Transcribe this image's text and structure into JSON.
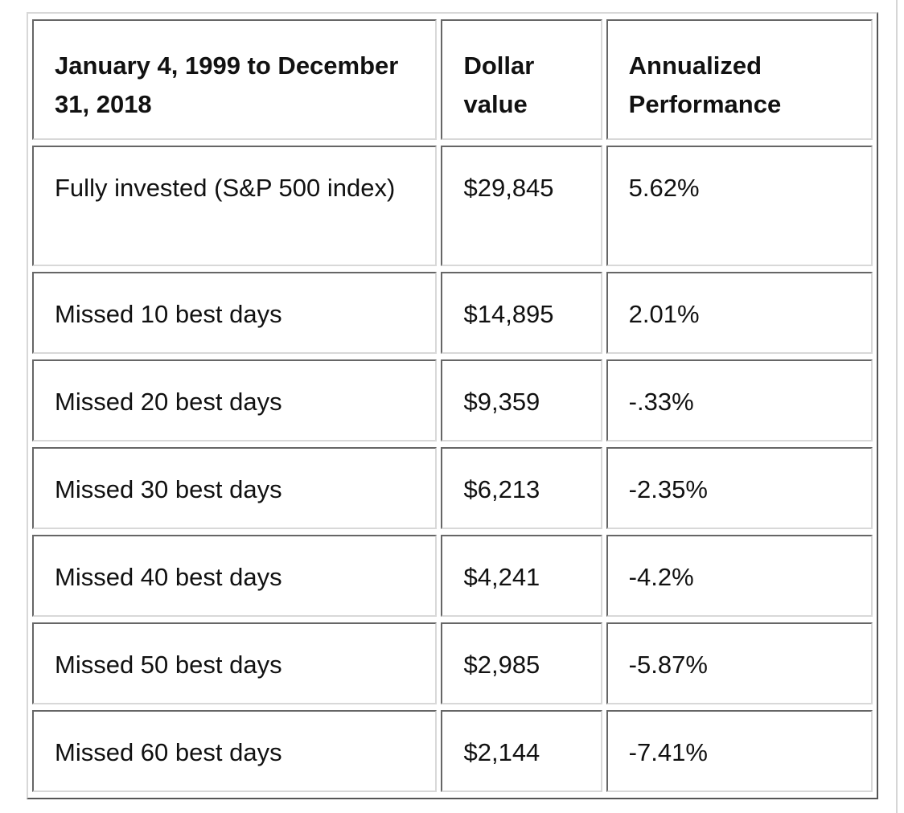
{
  "table": {
    "header": [
      "January 4, 1999 to December 31, 2018",
      "Dollar value",
      "Annualized Performance"
    ],
    "rows": [
      [
        "Fully invested (S&P 500 index)",
        "$29,845",
        "5.62%"
      ],
      [
        "Missed 10 best days",
        "$14,895",
        "2.01%"
      ],
      [
        "Missed 20 best days",
        "$9,359",
        "-.33%"
      ],
      [
        "Missed 30 best days",
        "$6,213",
        "-2.35%"
      ],
      [
        "Missed 40 best days",
        "$4,241",
        "-4.2%"
      ],
      [
        "Missed 50 best days",
        "$2,985",
        "-5.87%"
      ],
      [
        "Missed 60 best days",
        "$2,144",
        "-7.41%"
      ]
    ]
  }
}
